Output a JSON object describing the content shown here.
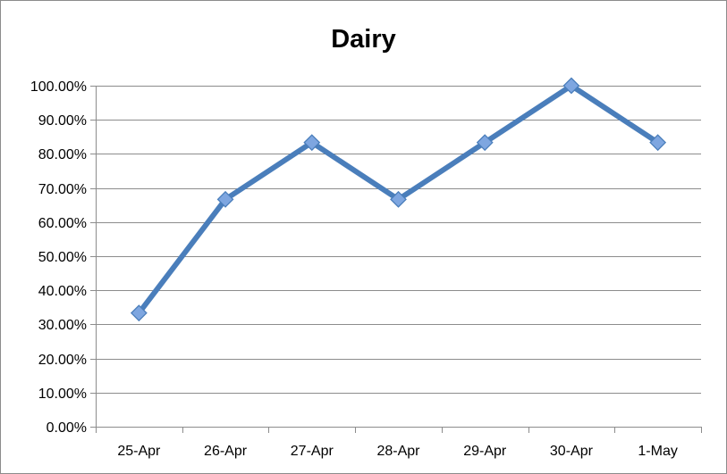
{
  "chart_data": {
    "type": "line",
    "title": "Dairy",
    "xlabel": "",
    "ylabel": "",
    "categories": [
      "25-Apr",
      "26-Apr",
      "27-Apr",
      "28-Apr",
      "29-Apr",
      "30-Apr",
      "1-May"
    ],
    "series": [
      {
        "values": [
          33.33,
          66.67,
          83.33,
          66.67,
          83.33,
          100.0,
          83.33
        ],
        "color": "#4a7ebb",
        "marker": "diamond",
        "marker_color": "#7ea6e0"
      }
    ],
    "ylim": [
      0,
      100
    ],
    "y_ticks": [
      "0.00%",
      "10.00%",
      "20.00%",
      "30.00%",
      "40.00%",
      "50.00%",
      "60.00%",
      "70.00%",
      "80.00%",
      "90.00%",
      "100.00%"
    ],
    "grid": "horizontal",
    "legend": "none"
  }
}
